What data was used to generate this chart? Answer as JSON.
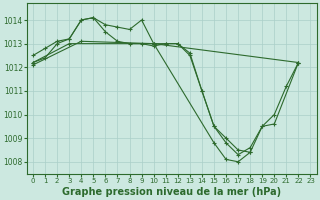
{
  "background_color": "#cce8e0",
  "grid_color": "#aacfc8",
  "line_color": "#2d6a2d",
  "xlabel": "Graphe pression niveau de la mer (hPa)",
  "xlabel_fontsize": 7,
  "xlim": [
    -0.5,
    23.5
  ],
  "ylim": [
    1007.5,
    1014.7
  ],
  "xticks": [
    0,
    1,
    2,
    3,
    4,
    5,
    6,
    7,
    8,
    9,
    10,
    11,
    12,
    13,
    14,
    15,
    16,
    17,
    18,
    19,
    20,
    21,
    22,
    23
  ],
  "yticks": [
    1008,
    1009,
    1010,
    1011,
    1012,
    1013,
    1014
  ],
  "series": [
    {
      "x": [
        0,
        1,
        2,
        3,
        4,
        5,
        6,
        7,
        8,
        9,
        10,
        11,
        12,
        13,
        14,
        15,
        16,
        17,
        18,
        19,
        20,
        21,
        22
      ],
      "y": [
        1012.5,
        1012.8,
        1013.1,
        1013.2,
        1014.0,
        1014.1,
        1013.8,
        1013.7,
        1013.6,
        1014.0,
        1013.0,
        1013.0,
        1013.0,
        1012.6,
        1011.0,
        1009.5,
        1008.8,
        1008.3,
        1008.6,
        1009.5,
        1010.0,
        1011.2,
        1012.2
      ]
    },
    {
      "x": [
        0,
        1,
        2,
        3,
        4,
        5,
        6,
        7,
        8,
        9,
        10,
        11,
        12,
        13,
        14,
        15,
        16,
        17,
        18
      ],
      "y": [
        1012.2,
        1012.4,
        1013.0,
        1013.2,
        1014.0,
        1014.1,
        1013.5,
        1013.1,
        1013.0,
        1013.0,
        1012.9,
        1013.0,
        1013.0,
        1012.5,
        1011.0,
        1009.5,
        1009.0,
        1008.5,
        1008.4
      ]
    },
    {
      "x": [
        0,
        3,
        10,
        22
      ],
      "y": [
        1012.2,
        1013.0,
        1013.0,
        1012.2
      ]
    },
    {
      "x": [
        0,
        4,
        10,
        15,
        16,
        17,
        18,
        19,
        20,
        22
      ],
      "y": [
        1012.1,
        1013.1,
        1013.0,
        1008.8,
        1008.1,
        1008.0,
        1008.4,
        1009.5,
        1009.6,
        1012.2
      ]
    }
  ]
}
